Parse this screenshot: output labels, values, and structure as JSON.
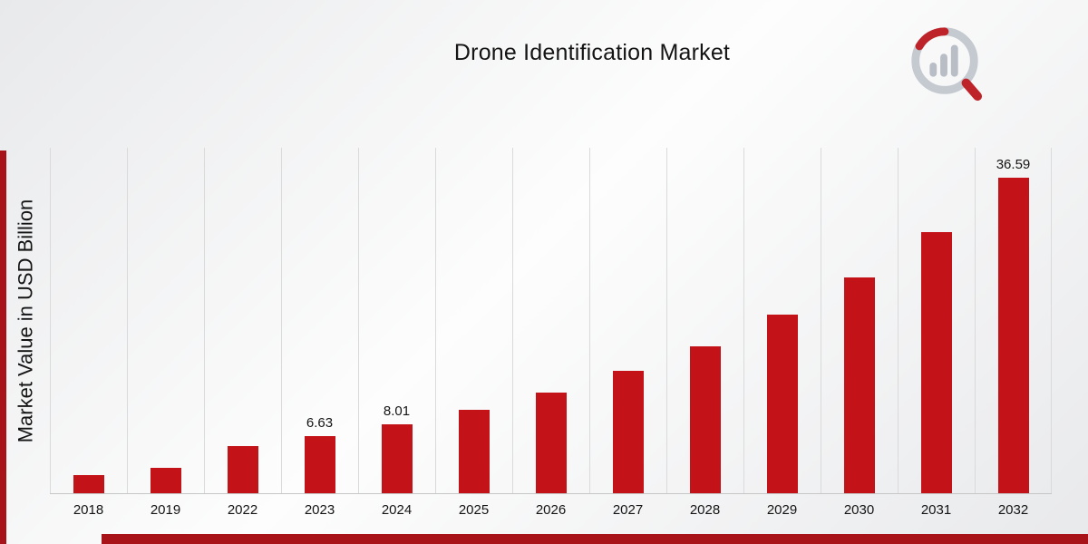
{
  "colors": {
    "bar": "#C41219",
    "accent_strip": "#A8131A",
    "grid": "#DADADA",
    "baseline": "#C6C6C6",
    "text": "#141414",
    "background_light": "#FDFDFD",
    "background_gray": "#E8E9EB",
    "logo_gray": "#C5C9D0",
    "logo_bar_gray": "#B8BDC6",
    "logo_red": "#BF232A"
  },
  "chart_data": {
    "type": "bar",
    "title": "Drone Identification Market",
    "xlabel": "",
    "ylabel": "Market Value in USD Billion",
    "unit": "USD Billion",
    "ylim": [
      0,
      40
    ],
    "grid": "vertical-only",
    "legend": "none",
    "bar_color": "#C41219",
    "categories": [
      "2018",
      "2019",
      "2022",
      "2023",
      "2024",
      "2025",
      "2026",
      "2027",
      "2028",
      "2029",
      "2030",
      "2031",
      "2032"
    ],
    "values": [
      2.1,
      2.9,
      5.5,
      6.63,
      8.01,
      9.7,
      11.7,
      14.2,
      17.1,
      20.7,
      25.0,
      30.3,
      36.59
    ],
    "data_labels": [
      "",
      "",
      "",
      "6.63",
      "8.01",
      "",
      "",
      "",
      "",
      "",
      "",
      "",
      "36.59"
    ]
  }
}
